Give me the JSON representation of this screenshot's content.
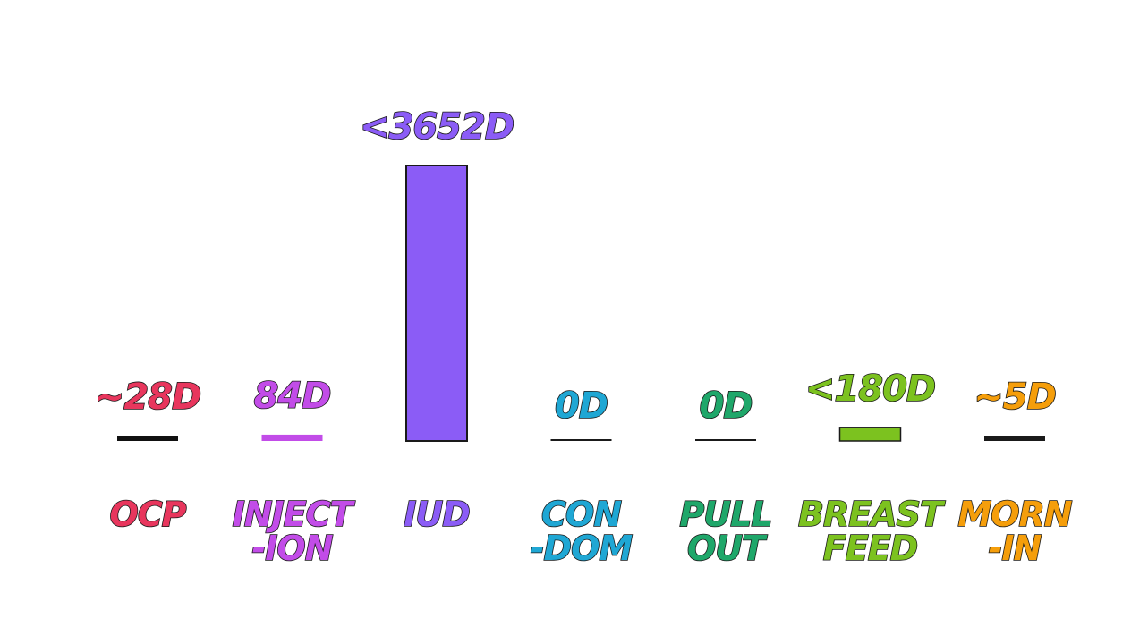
{
  "chart_data": {
    "type": "bar",
    "title": "",
    "xlabel": "",
    "ylabel": "",
    "categories": [
      {
        "lines": [
          "OCP"
        ],
        "color": "#e8365d"
      },
      {
        "lines": [
          "INJECT",
          "-ION"
        ],
        "color": "#c24ce8"
      },
      {
        "lines": [
          "IUD"
        ],
        "color": "#8b5cf6"
      },
      {
        "lines": [
          "CON",
          "-DOM"
        ],
        "color": "#1fa7d4"
      },
      {
        "lines": [
          "PULL",
          "OUT"
        ],
        "color": "#1fa76a"
      },
      {
        "lines": [
          "BREAST",
          "FEED"
        ],
        "color": "#7cc21f"
      },
      {
        "lines": [
          "MORN",
          "-IN"
        ],
        "color": "#f59e0b"
      }
    ],
    "values": [
      28,
      84,
      3652,
      0,
      0,
      180,
      5
    ],
    "value_labels": [
      "~28D",
      "84D",
      "<3652D",
      "0D",
      "0D",
      "<180D",
      "~5D"
    ],
    "bar_colors": [
      "#111111",
      "#c24ce8",
      "#8b5cf6",
      "#1a1a1a",
      "#1a1a1a",
      "#7cc21f",
      "#1a1a1a"
    ],
    "ylim": [
      0,
      3652
    ],
    "grid": false,
    "legend": "none"
  }
}
